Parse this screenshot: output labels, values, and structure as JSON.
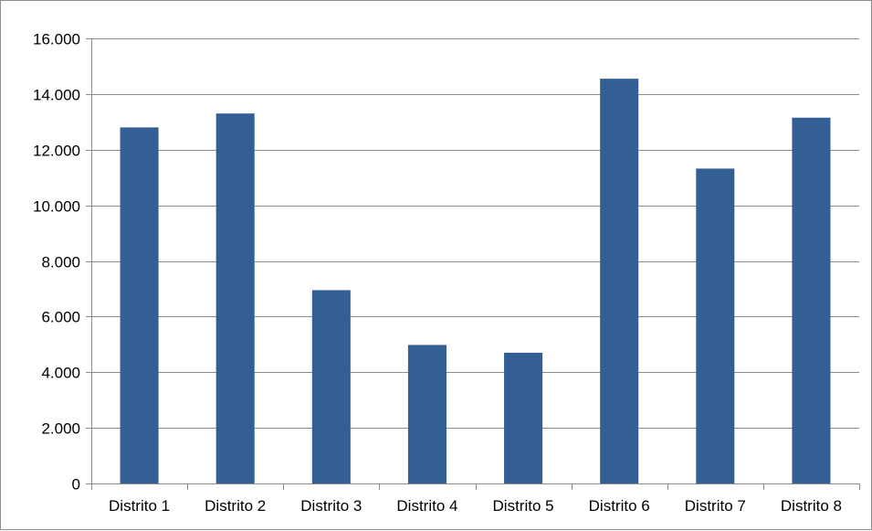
{
  "chart_data": {
    "type": "bar",
    "title": "",
    "xlabel": "",
    "ylabel": "",
    "categories": [
      "Distrito 1",
      "Distrito 2",
      "Distrito 3",
      "Distrito 4",
      "Distrito 5",
      "Distrito 6",
      "Distrito 7",
      "Distrito 8"
    ],
    "values": [
      12800,
      13300,
      6950,
      4980,
      4700,
      14550,
      11320,
      13150
    ],
    "ylim": [
      0,
      16000
    ],
    "yticks": [
      0,
      2000,
      4000,
      6000,
      8000,
      10000,
      12000,
      14000,
      16000
    ],
    "ytick_labels": [
      "0",
      "2.000",
      "4.000",
      "6.000",
      "8.000",
      "10.000",
      "12.000",
      "14.000",
      "16.000"
    ],
    "grid": true,
    "legend": "none",
    "colors": {
      "bar": "#335f94",
      "grid": "#8c8c8c",
      "axis": "#8c8c8c",
      "text": "#000000"
    }
  }
}
